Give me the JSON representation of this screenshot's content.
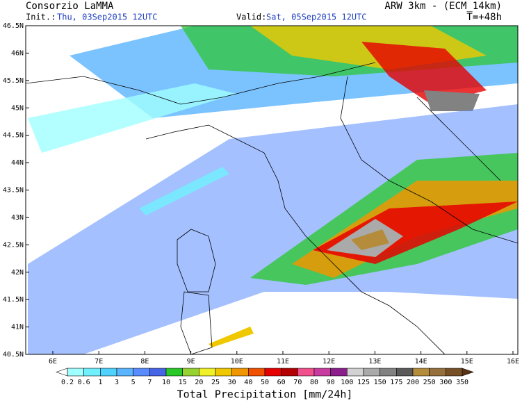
{
  "header": {
    "title": "Consorzio LaMMA",
    "model": "ARW 3km - (ECM_14km)",
    "init_label": "Init.:",
    "init_time": "Thu, 03Sep2015 12UTC",
    "valid_label": "Valid:",
    "valid_time": "Sat, 05Sep2015 12UTC",
    "lead_time": "T=+48h"
  },
  "map": {
    "lat_labels": [
      "46.5N",
      "46N",
      "45.5N",
      "45N",
      "44.5N",
      "44N",
      "43.5N",
      "43N",
      "42.5N",
      "42N",
      "41.5N",
      "41N",
      "40.5N"
    ],
    "lon_labels": [
      "6E",
      "7E",
      "8E",
      "9E",
      "10E",
      "11E",
      "12E",
      "13E",
      "14E",
      "15E",
      "16E"
    ]
  },
  "colorbar": {
    "title": "Total Precipitation [mm/24h]",
    "levels": [
      "0.2",
      "0.6",
      "1",
      "3",
      "5",
      "7",
      "10",
      "15",
      "20",
      "25",
      "30",
      "40",
      "50",
      "60",
      "70",
      "80",
      "90",
      "100",
      "125",
      "150",
      "175",
      "200",
      "250",
      "300",
      "350"
    ],
    "colors": [
      "#ffffff",
      "#a0ffff",
      "#70f0ff",
      "#50d2ff",
      "#5ab4ff",
      "#5a8cff",
      "#4664e6",
      "#28c828",
      "#96d232",
      "#f0f028",
      "#f0c800",
      "#f09600",
      "#f05000",
      "#e60000",
      "#b40000",
      "#f0508c",
      "#c83ca0",
      "#8c1e8c",
      "#d2d2d2",
      "#aaaaaa",
      "#828282",
      "#5a5a5a",
      "#b48c3c",
      "#96703c",
      "#785028",
      "#5a3214"
    ]
  }
}
